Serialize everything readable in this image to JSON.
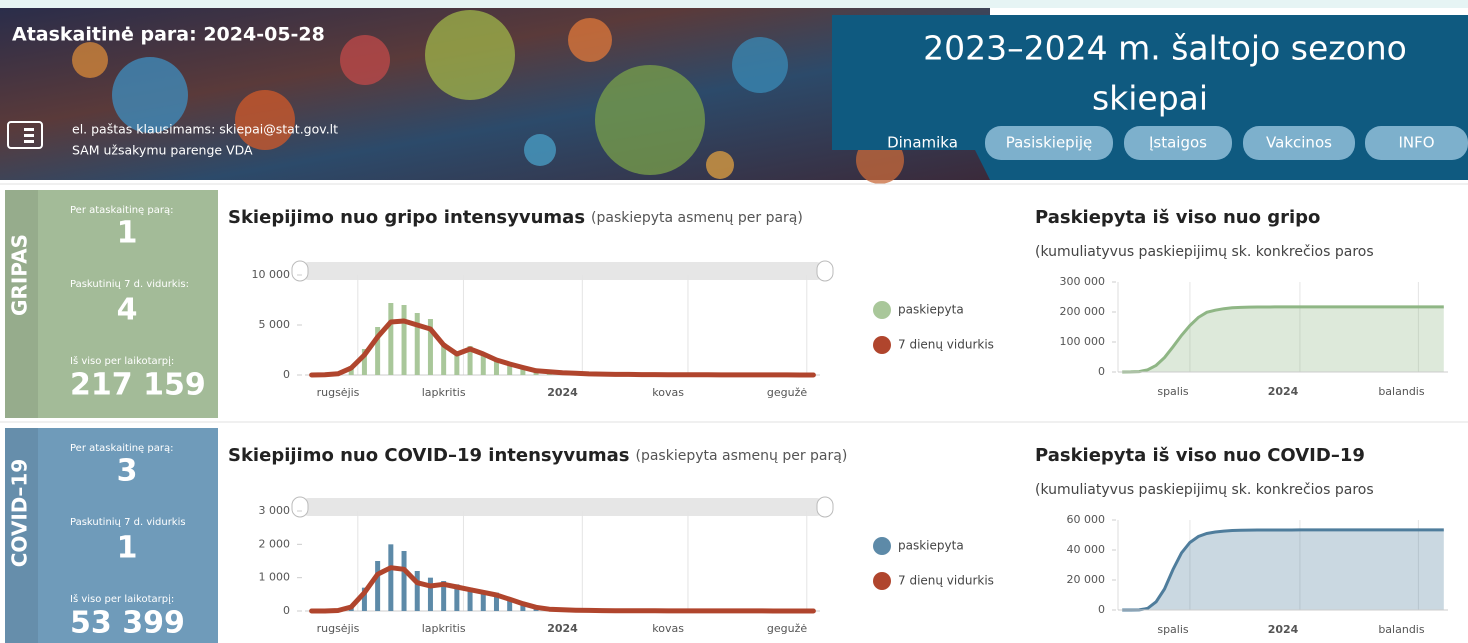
{
  "header": {
    "report_date": "Ataskaitinė para: 2024-05-28",
    "email": "el. paštas klausimams:  skiepai@stat.gov.lt",
    "org": "SAM užsakymu parenge VDA",
    "title_line1": "2023–2024 m. šaltojo sezono",
    "title_line2": "skiepai"
  },
  "nav": [
    "Dinamika",
    "Pasiskiepiję",
    "Įstaigos",
    "Vakcinos",
    "INFO"
  ],
  "panels": [
    {
      "label": "GRIPAS",
      "color": "#a3bb98",
      "stats": [
        {
          "label": "Per ataskaitinę parą:",
          "value": 1
        },
        {
          "label": "Paskutinių 7 d. vidurkis:",
          "value": 4
        },
        {
          "label": "Iš viso per laikotarpį:",
          "value": 217159,
          "value_label": "217 159"
        }
      ],
      "daily": {
        "type": "bar",
        "title": "Skiepijimo nuo gripo intensyvumas",
        "subtitle": "(paskiepyta asmenų per parą)",
        "categories": [
          null,
          null,
          "rugsėjis",
          null,
          null,
          null,
          null,
          null,
          null,
          null,
          "lapkritis",
          null,
          null,
          null,
          null,
          null,
          null,
          null,
          null,
          "2024",
          null,
          null,
          null,
          null,
          null,
          null,
          null,
          "kovas",
          null,
          null,
          null,
          null,
          null,
          null,
          null,
          null,
          "gegužė",
          null,
          null
        ],
        "series": [
          {
            "name": "paskiepyta",
            "color": "#a9c79a",
            "values": [
              0,
              30,
              150,
              900,
              2600,
              4800,
              7200,
              7000,
              6200,
              5600,
              3200,
              2300,
              2900,
              2200,
              1600,
              1200,
              800,
              400,
              350,
              250,
              180,
              120,
              90,
              70,
              60,
              50,
              40,
              30,
              25,
              20,
              20,
              15,
              12,
              10,
              10,
              8,
              6,
              5,
              5
            ]
          },
          {
            "name": "7 dienų vidurkis",
            "color": "#b0452d",
            "values": [
              0,
              20,
              120,
              700,
              2000,
              3800,
              5300,
              5400,
              5000,
              4600,
              3000,
              2100,
              2600,
              2100,
              1500,
              1100,
              750,
              420,
              330,
              230,
              170,
              110,
              85,
              65,
              55,
              45,
              38,
              28,
              22,
              18,
              17,
              14,
              11,
              9,
              9,
              7,
              5,
              4,
              4
            ]
          }
        ],
        "ylim": [
          0,
          10000
        ],
        "yticks": [
          0,
          {
            "value": 5000,
            "label": "5 000"
          },
          {
            "value": 10000,
            "label": "10 000"
          }
        ]
      },
      "cumulative": {
        "type": "area",
        "title": "Paskiepyta iš viso nuo gripo",
        "subtitle": "(kumuliatyvus paskiepijimų sk. konkrečios paros",
        "categories": [
          null,
          null,
          null,
          null,
          null,
          null,
          "spalis",
          null,
          null,
          null,
          null,
          null,
          null,
          null,
          null,
          null,
          null,
          null,
          null,
          "2024",
          null,
          null,
          null,
          null,
          null,
          null,
          null,
          null,
          null,
          null,
          null,
          null,
          null,
          "balandis",
          null,
          null,
          null,
          null,
          null
        ],
        "color": "#8fb685",
        "values": [
          0,
          200,
          1500,
          7500,
          22000,
          48000,
          84000,
          122000,
          155000,
          182000,
          199000,
          206000,
          211000,
          214000,
          215500,
          216200,
          216600,
          216800,
          216900,
          216950,
          217000,
          217030,
          217050,
          217070,
          217080,
          217090,
          217100,
          217110,
          217115,
          217120,
          217125,
          217130,
          217135,
          217140,
          217145,
          217150,
          217153,
          217156,
          217159
        ],
        "ylim": [
          0,
          300000
        ],
        "yticks": [
          0,
          {
            "value": 100000,
            "label": "100 000"
          },
          {
            "value": 200000,
            "label": "200 000"
          },
          {
            "value": 300000,
            "label": "300 000"
          }
        ]
      }
    },
    {
      "label": "COVID–19",
      "color": "#6f9bba",
      "stats": [
        {
          "label": "Per ataskaitinę parą:",
          "value": 3
        },
        {
          "label": "Paskutinių 7 d. vidurkis",
          "value": 1
        },
        {
          "label": "Iš viso per laikotarpį:",
          "value": 53399,
          "value_label": "53 399"
        }
      ],
      "daily": {
        "type": "bar",
        "title": "Skiepijimo nuo COVID–19 intensyvumas",
        "subtitle": "(paskiepyta asmenų per parą)",
        "categories": [
          null,
          null,
          "rugsėjis",
          null,
          null,
          null,
          null,
          null,
          null,
          null,
          "lapkritis",
          null,
          null,
          null,
          null,
          null,
          null,
          null,
          null,
          "2024",
          null,
          null,
          null,
          null,
          null,
          null,
          null,
          "kovas",
          null,
          null,
          null,
          null,
          null,
          null,
          null,
          null,
          "gegužė",
          null,
          null
        ],
        "series": [
          {
            "name": "paskiepyta",
            "color": "#5d8aa8",
            "values": [
              0,
              0,
              20,
              150,
              700,
              1500,
              2000,
              1800,
              1200,
              1000,
              900,
              800,
              700,
              600,
              550,
              400,
              250,
              120,
              60,
              40,
              30,
              20,
              15,
              12,
              10,
              8,
              6,
              5,
              4,
              4,
              3,
              3,
              3,
              2,
              2,
              2,
              2,
              2,
              2
            ]
          },
          {
            "name": "7 dienų vidurkis",
            "color": "#b0452d",
            "values": [
              0,
              0,
              15,
              120,
              550,
              1100,
              1300,
              1250,
              850,
              750,
              800,
              720,
              640,
              560,
              480,
              350,
              220,
              110,
              55,
              35,
              25,
              18,
              13,
              10,
              8,
              7,
              5,
              4,
              4,
              3,
              3,
              3,
              2,
              2,
              2,
              1,
              1,
              1,
              1
            ]
          }
        ],
        "ylim": [
          0,
          3000
        ],
        "yticks": [
          0,
          {
            "value": 1000,
            "label": "1 000"
          },
          {
            "value": 2000,
            "label": "2 000"
          },
          {
            "value": 3000,
            "label": "3 000"
          }
        ]
      },
      "cumulative": {
        "type": "area",
        "title": "Paskiepyta iš viso nuo COVID–19",
        "subtitle": "(kumuliatyvus paskiepijimų sk. konkrečios paros",
        "categories": [
          null,
          null,
          null,
          null,
          null,
          null,
          "spalis",
          null,
          null,
          null,
          null,
          null,
          null,
          null,
          null,
          null,
          null,
          null,
          null,
          "2024",
          null,
          null,
          null,
          null,
          null,
          null,
          null,
          null,
          null,
          null,
          null,
          null,
          null,
          "balandis",
          null,
          null,
          null,
          null,
          null
        ],
        "color": "#4f7d9c",
        "values": [
          0,
          0,
          100,
          1100,
          5500,
          14000,
          27000,
          38000,
          45000,
          49000,
          51000,
          52000,
          52600,
          53000,
          53150,
          53250,
          53300,
          53330,
          53345,
          53355,
          53362,
          53368,
          53372,
          53376,
          53379,
          53382,
          53384,
          53386,
          53388,
          53390,
          53391,
          53392,
          53393,
          53394,
          53395,
          53396,
          53397,
          53398,
          53399
        ],
        "ylim": [
          0,
          60000
        ],
        "yticks": [
          0,
          {
            "value": 20000,
            "label": "20 000"
          },
          {
            "value": 40000,
            "label": "40 000"
          },
          {
            "value": 60000,
            "label": "60 000"
          }
        ]
      }
    }
  ]
}
